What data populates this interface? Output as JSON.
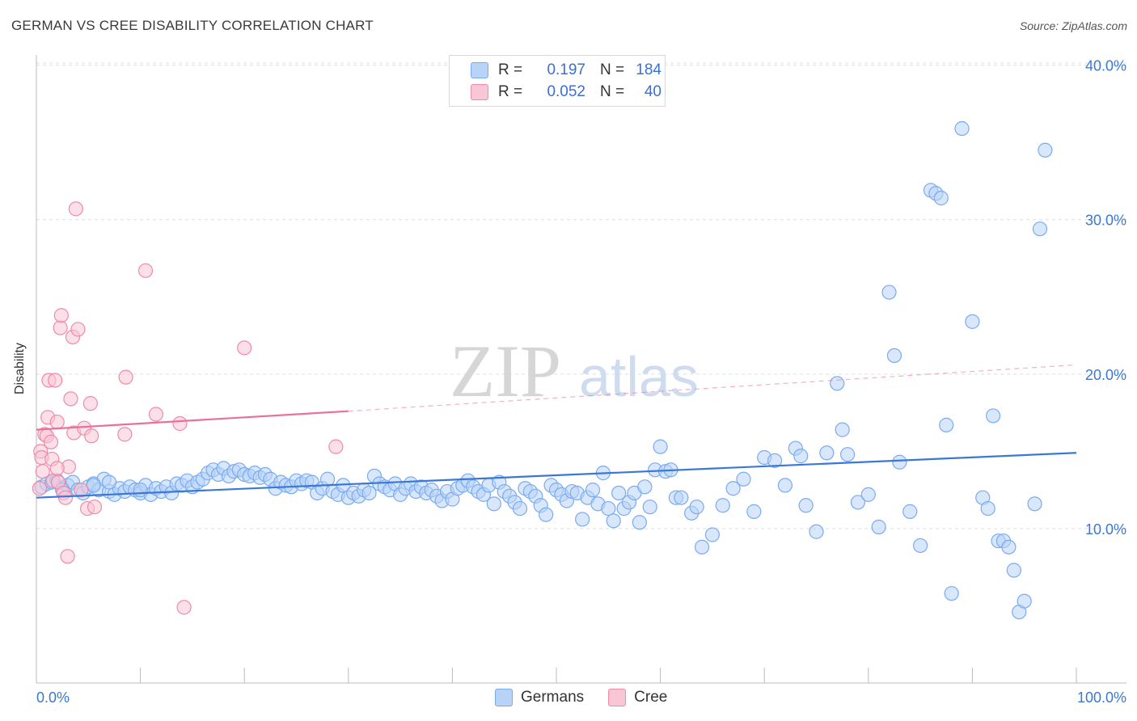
{
  "title": "GERMAN VS CREE DISABILITY CORRELATION CHART",
  "source": "Source: ZipAtlas.com",
  "watermark": {
    "zip": "ZIP",
    "atlas": "atlas"
  },
  "legend": {
    "r_label": "R =",
    "n_label": "N =",
    "rows": [
      {
        "name": "Germans",
        "r": "0.197",
        "n": "184",
        "color": "#7aabf0",
        "fill": "#b8d3f7"
      },
      {
        "name": "Cree",
        "r": "0.052",
        "n": "40",
        "color": "#f08aaa",
        "fill": "#f8c6d5"
      }
    ]
  },
  "chart_data": {
    "type": "scatter",
    "ylabel": "Disability",
    "x_tick_labels": [
      "0.0%",
      "100.0%"
    ],
    "y_tick_labels": [
      "10.0%",
      "20.0%",
      "30.0%",
      "40.0%"
    ],
    "xlim": [
      0,
      100
    ],
    "ylim": [
      0,
      41.5
    ],
    "y_ticks": [
      10,
      20,
      30,
      40
    ],
    "grid": true,
    "series": [
      {
        "name": "Germans",
        "color": "#3a78d4",
        "trend": {
          "x0": 0,
          "y0": 12.0,
          "x1": 100,
          "y1": 14.9
        },
        "points": [
          [
            0.5,
            12.7
          ],
          [
            1.0,
            12.9
          ],
          [
            1.5,
            13.0
          ],
          [
            2.0,
            13.1
          ],
          [
            2.5,
            12.6
          ],
          [
            3.0,
            12.8
          ],
          [
            3.5,
            13.0
          ],
          [
            4.0,
            12.5
          ],
          [
            4.5,
            12.3
          ],
          [
            5.0,
            12.7
          ],
          [
            5.5,
            12.9
          ],
          [
            6.0,
            12.5
          ],
          [
            6.5,
            13.2
          ],
          [
            7.0,
            12.4
          ],
          [
            7.5,
            12.2
          ],
          [
            8.0,
            12.6
          ],
          [
            8.5,
            12.4
          ],
          [
            9.0,
            12.7
          ],
          [
            9.5,
            12.5
          ],
          [
            10.0,
            12.3
          ],
          [
            10.5,
            12.8
          ],
          [
            11.0,
            12.2
          ],
          [
            11.5,
            12.6
          ],
          [
            12.0,
            12.4
          ],
          [
            12.5,
            12.7
          ],
          [
            13.0,
            12.3
          ],
          [
            13.5,
            12.9
          ],
          [
            14.0,
            12.8
          ],
          [
            14.5,
            13.1
          ],
          [
            15.0,
            12.7
          ],
          [
            15.5,
            13.0
          ],
          [
            16.0,
            13.2
          ],
          [
            16.5,
            13.6
          ],
          [
            17.0,
            13.8
          ],
          [
            17.5,
            13.5
          ],
          [
            18.0,
            13.9
          ],
          [
            18.5,
            13.4
          ],
          [
            19.0,
            13.7
          ],
          [
            19.5,
            13.8
          ],
          [
            20.0,
            13.5
          ],
          [
            20.5,
            13.4
          ],
          [
            21.0,
            13.6
          ],
          [
            21.5,
            13.3
          ],
          [
            22.0,
            13.5
          ],
          [
            22.5,
            13.2
          ],
          [
            23.0,
            12.6
          ],
          [
            23.5,
            13.0
          ],
          [
            24.0,
            12.8
          ],
          [
            24.5,
            12.7
          ],
          [
            25.0,
            13.1
          ],
          [
            25.5,
            12.9
          ],
          [
            26.0,
            13.1
          ],
          [
            26.5,
            13.0
          ],
          [
            27.0,
            12.3
          ],
          [
            27.5,
            12.6
          ],
          [
            28.0,
            13.2
          ],
          [
            28.5,
            12.4
          ],
          [
            29.0,
            12.2
          ],
          [
            29.5,
            12.8
          ],
          [
            30.0,
            12.0
          ],
          [
            30.5,
            12.3
          ],
          [
            31.0,
            12.1
          ],
          [
            31.5,
            12.5
          ],
          [
            32.0,
            12.3
          ],
          [
            32.5,
            13.4
          ],
          [
            33.0,
            12.9
          ],
          [
            33.5,
            12.7
          ],
          [
            34.0,
            12.5
          ],
          [
            34.5,
            12.9
          ],
          [
            35.0,
            12.2
          ],
          [
            35.5,
            12.6
          ],
          [
            36.0,
            12.9
          ],
          [
            36.5,
            12.4
          ],
          [
            37.0,
            12.7
          ],
          [
            37.5,
            12.3
          ],
          [
            38.0,
            12.5
          ],
          [
            38.5,
            12.1
          ],
          [
            39.0,
            11.8
          ],
          [
            39.5,
            12.4
          ],
          [
            40.0,
            11.9
          ],
          [
            40.5,
            12.6
          ],
          [
            41.0,
            12.8
          ],
          [
            41.5,
            13.1
          ],
          [
            42.0,
            12.7
          ],
          [
            42.5,
            12.4
          ],
          [
            43.0,
            12.2
          ],
          [
            43.5,
            12.8
          ],
          [
            44.0,
            11.6
          ],
          [
            44.5,
            13.0
          ],
          [
            45.0,
            12.4
          ],
          [
            45.5,
            12.1
          ],
          [
            46.0,
            11.7
          ],
          [
            46.5,
            11.3
          ],
          [
            47.0,
            12.6
          ],
          [
            47.5,
            12.4
          ],
          [
            48.0,
            12.1
          ],
          [
            48.5,
            11.5
          ],
          [
            49.0,
            10.9
          ],
          [
            49.5,
            12.8
          ],
          [
            50.0,
            12.5
          ],
          [
            50.5,
            12.2
          ],
          [
            51.0,
            11.8
          ],
          [
            51.5,
            12.4
          ],
          [
            52.0,
            12.3
          ],
          [
            52.5,
            10.6
          ],
          [
            53.0,
            12.0
          ],
          [
            53.5,
            12.5
          ],
          [
            54.0,
            11.6
          ],
          [
            54.5,
            13.6
          ],
          [
            55.0,
            11.3
          ],
          [
            55.5,
            10.5
          ],
          [
            56.0,
            12.3
          ],
          [
            56.5,
            11.3
          ],
          [
            57.0,
            11.7
          ],
          [
            57.5,
            12.3
          ],
          [
            58.0,
            10.4
          ],
          [
            58.5,
            12.7
          ],
          [
            59.0,
            11.4
          ],
          [
            59.5,
            13.8
          ],
          [
            60.0,
            15.3
          ],
          [
            60.5,
            13.7
          ],
          [
            61.0,
            13.8
          ],
          [
            61.5,
            12.0
          ],
          [
            62.0,
            12.0
          ],
          [
            63.0,
            11.0
          ],
          [
            63.5,
            11.4
          ],
          [
            64.0,
            8.8
          ],
          [
            65.0,
            9.6
          ],
          [
            66.0,
            11.5
          ],
          [
            67.0,
            12.6
          ],
          [
            68.0,
            13.2
          ],
          [
            69.0,
            11.1
          ],
          [
            70.0,
            14.6
          ],
          [
            71.0,
            14.4
          ],
          [
            72.0,
            12.8
          ],
          [
            73.0,
            15.2
          ],
          [
            73.5,
            14.7
          ],
          [
            74.0,
            11.5
          ],
          [
            75.0,
            9.8
          ],
          [
            76.0,
            14.9
          ],
          [
            77.0,
            19.4
          ],
          [
            77.5,
            16.4
          ],
          [
            78.0,
            14.8
          ],
          [
            79.0,
            11.7
          ],
          [
            80.0,
            12.2
          ],
          [
            81.0,
            10.1
          ],
          [
            82.0,
            25.3
          ],
          [
            82.5,
            21.2
          ],
          [
            83.0,
            14.3
          ],
          [
            84.0,
            11.1
          ],
          [
            85.0,
            8.9
          ],
          [
            86.0,
            31.9
          ],
          [
            86.5,
            31.7
          ],
          [
            87.0,
            31.4
          ],
          [
            87.5,
            16.7
          ],
          [
            88.0,
            5.8
          ],
          [
            89.0,
            35.9
          ],
          [
            90.0,
            23.4
          ],
          [
            91.0,
            12.0
          ],
          [
            91.5,
            11.3
          ],
          [
            92.0,
            17.3
          ],
          [
            92.5,
            9.2
          ],
          [
            93.0,
            9.2
          ],
          [
            93.5,
            8.8
          ],
          [
            94.0,
            7.3
          ],
          [
            94.5,
            4.6
          ],
          [
            95.0,
            5.3
          ],
          [
            96.0,
            11.6
          ],
          [
            96.5,
            29.4
          ],
          [
            97.0,
            34.5
          ],
          [
            2.5,
            12.5
          ],
          [
            5.5,
            12.8
          ],
          [
            7.0,
            13.0
          ],
          [
            10.0,
            12.5
          ]
        ]
      },
      {
        "name": "Cree",
        "color": "#e8709a",
        "trend": {
          "x0": 0,
          "y0": 16.4,
          "x1": 30,
          "y1": 17.6
        },
        "trend_ext": {
          "x0": 30,
          "y0": 17.6,
          "x1": 100,
          "y1": 20.6
        },
        "points": [
          [
            0.3,
            12.6
          ],
          [
            0.4,
            15.0
          ],
          [
            0.5,
            14.6
          ],
          [
            0.6,
            13.7
          ],
          [
            0.8,
            16.1
          ],
          [
            1.0,
            16.0
          ],
          [
            1.1,
            17.2
          ],
          [
            1.2,
            19.6
          ],
          [
            1.4,
            15.6
          ],
          [
            1.5,
            14.5
          ],
          [
            1.6,
            13.1
          ],
          [
            1.8,
            19.6
          ],
          [
            2.0,
            16.9
          ],
          [
            2.1,
            13.0
          ],
          [
            2.3,
            23.0
          ],
          [
            2.4,
            23.8
          ],
          [
            2.6,
            12.3
          ],
          [
            2.8,
            12.0
          ],
          [
            3.0,
            8.2
          ],
          [
            3.1,
            14.0
          ],
          [
            3.3,
            18.4
          ],
          [
            3.5,
            22.4
          ],
          [
            3.6,
            16.2
          ],
          [
            3.8,
            30.7
          ],
          [
            4.0,
            22.9
          ],
          [
            4.3,
            12.5
          ],
          [
            4.6,
            16.5
          ],
          [
            4.9,
            11.3
          ],
          [
            5.2,
            18.1
          ],
          [
            5.3,
            16.0
          ],
          [
            5.6,
            11.4
          ],
          [
            8.5,
            16.1
          ],
          [
            8.6,
            19.8
          ],
          [
            10.5,
            26.7
          ],
          [
            11.5,
            17.4
          ],
          [
            13.8,
            16.8
          ],
          [
            14.2,
            4.9
          ],
          [
            20.0,
            21.7
          ],
          [
            28.8,
            15.3
          ],
          [
            2.0,
            13.9
          ]
        ]
      }
    ]
  }
}
